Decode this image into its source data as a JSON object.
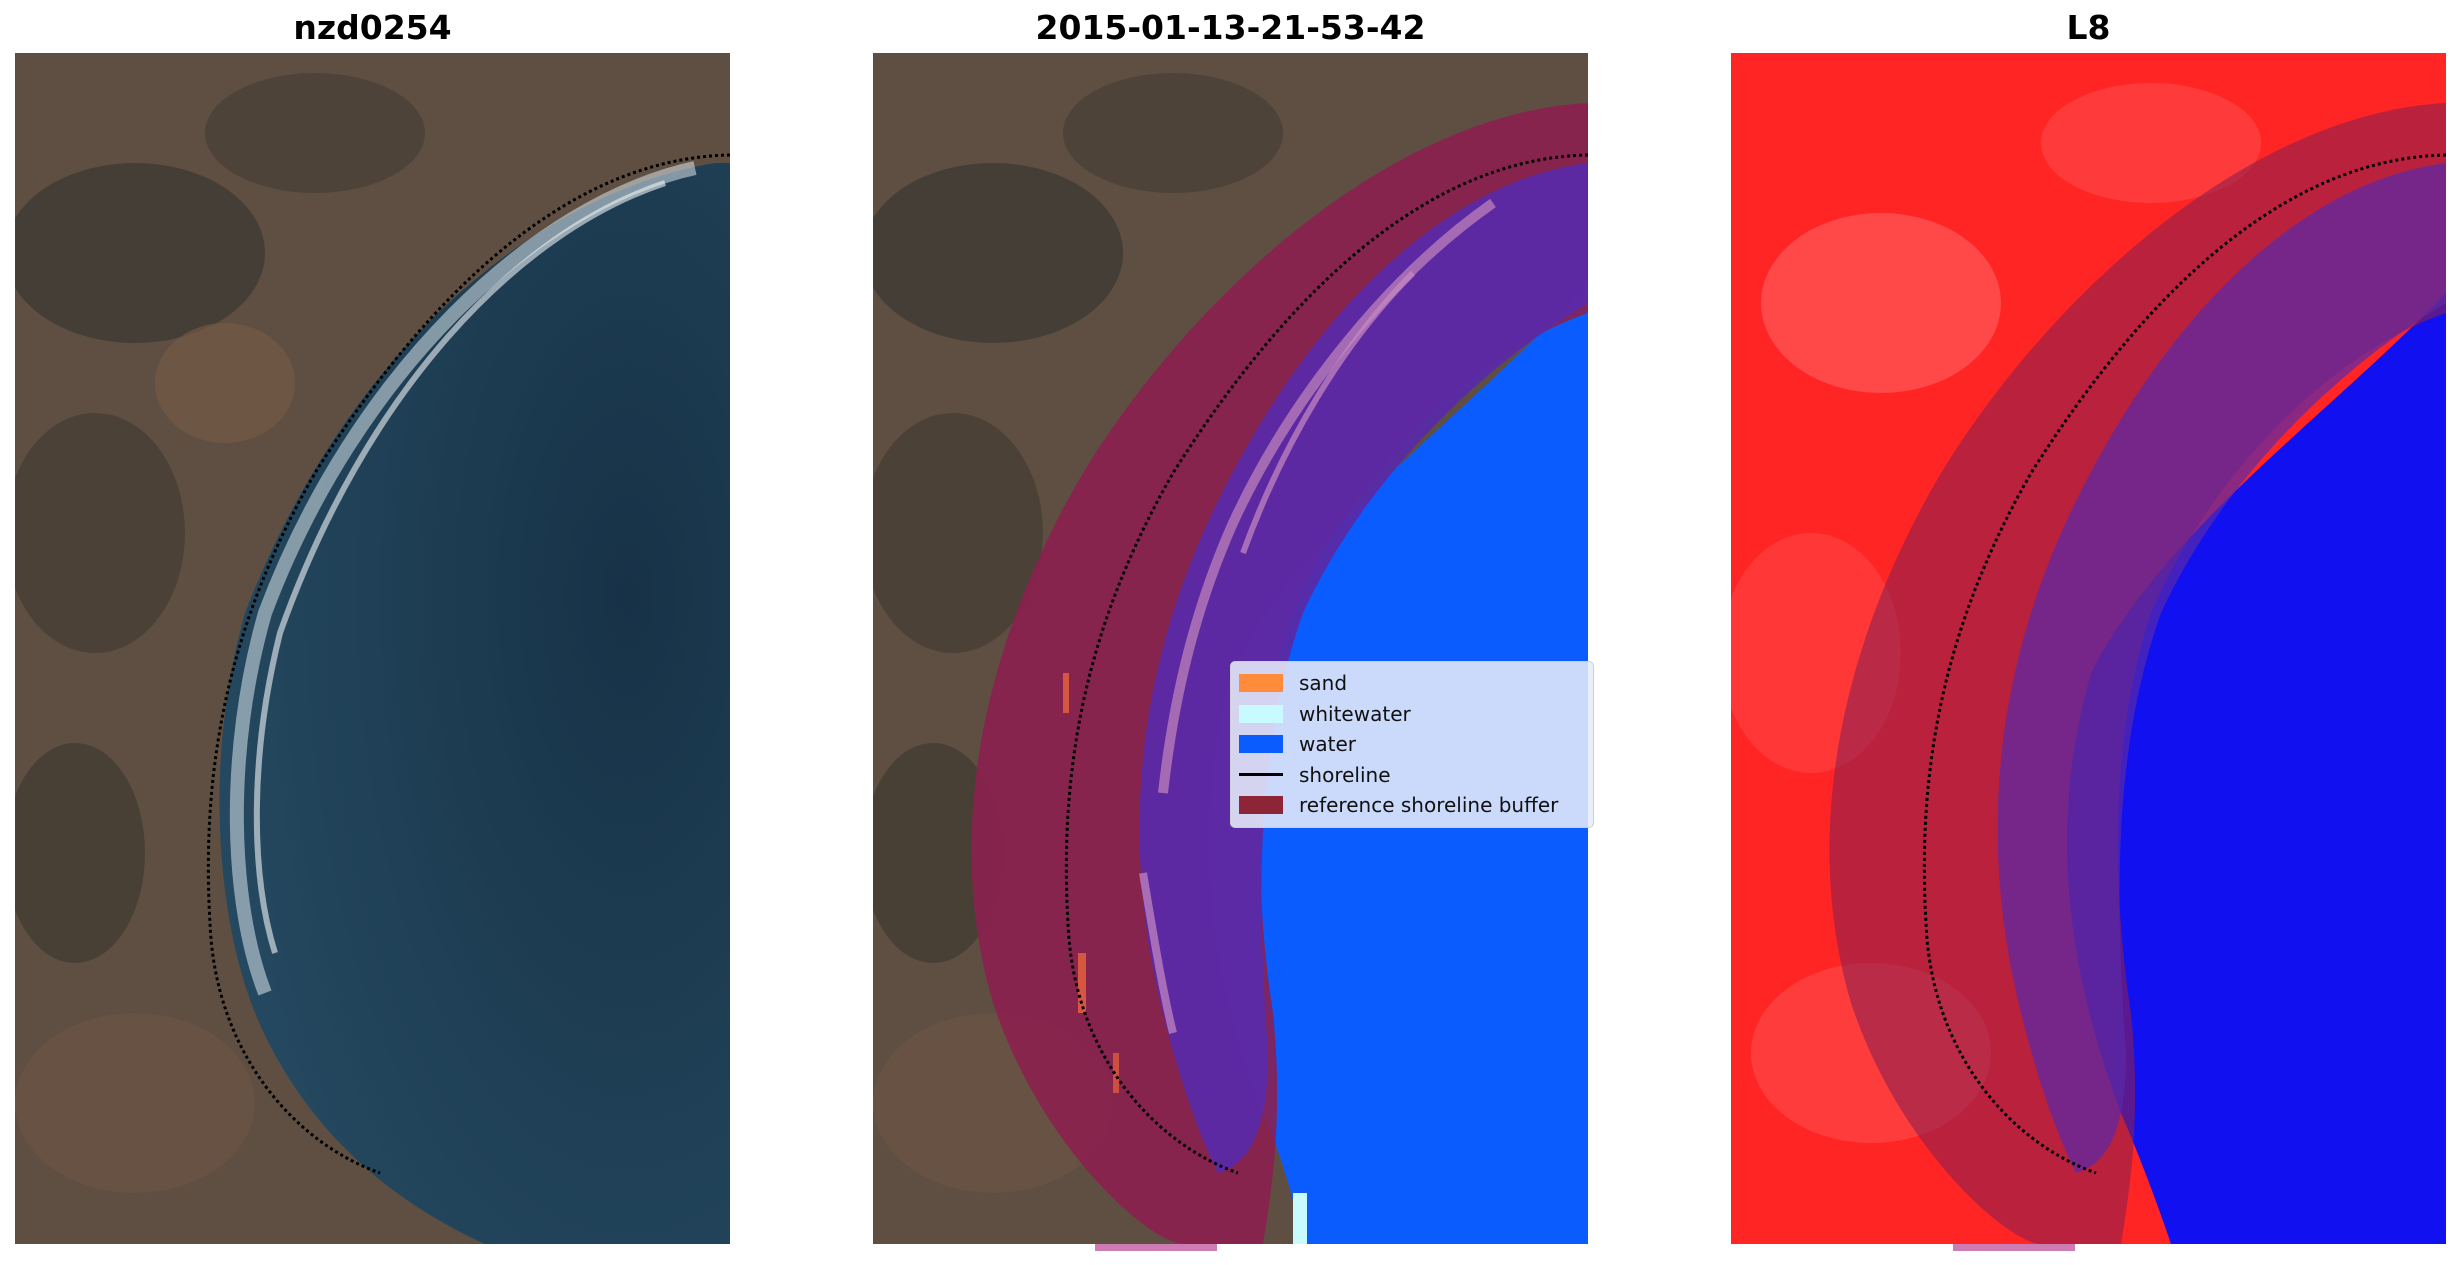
{
  "panels": [
    {
      "title": "nzd0254"
    },
    {
      "title": "2015-01-13-21-53-42"
    },
    {
      "title": "L8"
    }
  ],
  "legend": {
    "items": [
      {
        "label": "sand",
        "color": "#ff8c3a"
      },
      {
        "label": "whitewater",
        "color": "#c8fbff"
      },
      {
        "label": "water",
        "color": "#0a5cff"
      },
      {
        "label": "shoreline",
        "color": "#000000"
      },
      {
        "label": "reference shoreline buffer",
        "color": "#8c2535"
      }
    ]
  },
  "colors": {
    "land_rgb": "#6b5a4a",
    "sea_rgb": "#1d3a52",
    "land_index": "#ff2020",
    "water_index": "#1010f0",
    "buffer": "#8c1f4e",
    "water_class": "#0a5cff",
    "sand_class": "#ff8c3a"
  }
}
